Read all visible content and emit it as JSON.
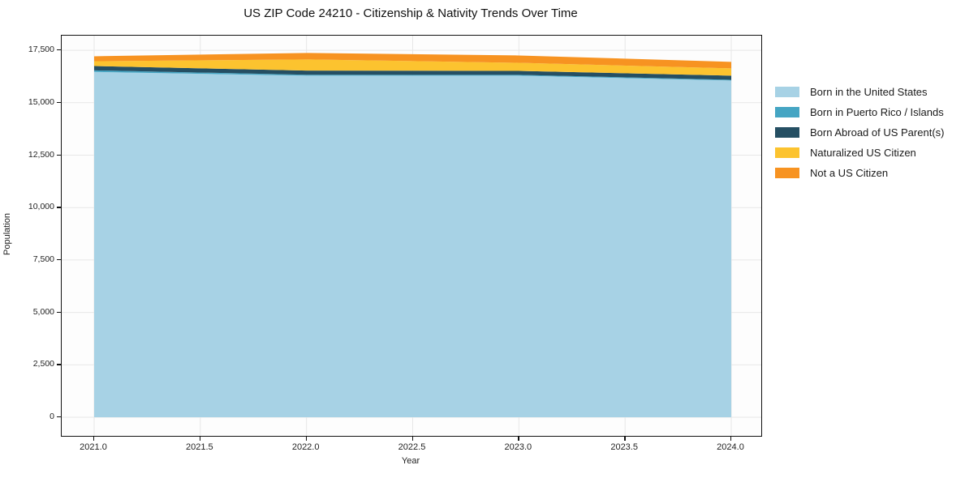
{
  "title": "US ZIP Code 24210 - Citizenship & Nativity Trends Over Time",
  "axes": {
    "x_label": "Year",
    "y_label": "Population"
  },
  "chart_data": {
    "type": "area",
    "stacked": true,
    "title": "US ZIP Code 24210 - Citizenship & Nativity Trends Over Time",
    "xlabel": "Year",
    "ylabel": "Population",
    "grid": true,
    "legend_position": "right",
    "x": [
      2021,
      2022,
      2023,
      2024
    ],
    "xlim": [
      2020.85,
      2024.15
    ],
    "ylim": [
      0,
      18200
    ],
    "x_ticks": [
      2021.0,
      2021.5,
      2022.0,
      2022.5,
      2023.0,
      2023.5,
      2024.0
    ],
    "x_tick_labels": [
      "2021.0",
      "2021.5",
      "2022.0",
      "2022.5",
      "2023.0",
      "2023.5",
      "2024.0"
    ],
    "y_ticks": [
      0,
      2500,
      5000,
      7500,
      10000,
      12500,
      15000,
      17500
    ],
    "y_tick_labels": [
      "0",
      "2,500",
      "5,000",
      "7,500",
      "10,000",
      "12,500",
      "15,000",
      "17,500"
    ],
    "series": [
      {
        "name": "Born in the United States",
        "color": "#a7d2e5",
        "values": [
          16470,
          16290,
          16290,
          16060
        ]
      },
      {
        "name": "Born in Puerto Rico / Islands",
        "color": "#45a5c3",
        "values": [
          75,
          45,
          40,
          35
        ]
      },
      {
        "name": "Born Abroad of US Parent(s)",
        "color": "#254f63",
        "values": [
          205,
          200,
          190,
          195
        ]
      },
      {
        "name": "Naturalized US Citizen",
        "color": "#fcc32f",
        "values": [
          230,
          530,
          385,
          350
        ]
      },
      {
        "name": "Not a US Citizen",
        "color": "#f79321",
        "values": [
          235,
          310,
          350,
          310
        ]
      }
    ],
    "totals": [
      17215,
      17375,
      17255,
      16950
    ],
    "grid_color": "#e7e7e7"
  }
}
